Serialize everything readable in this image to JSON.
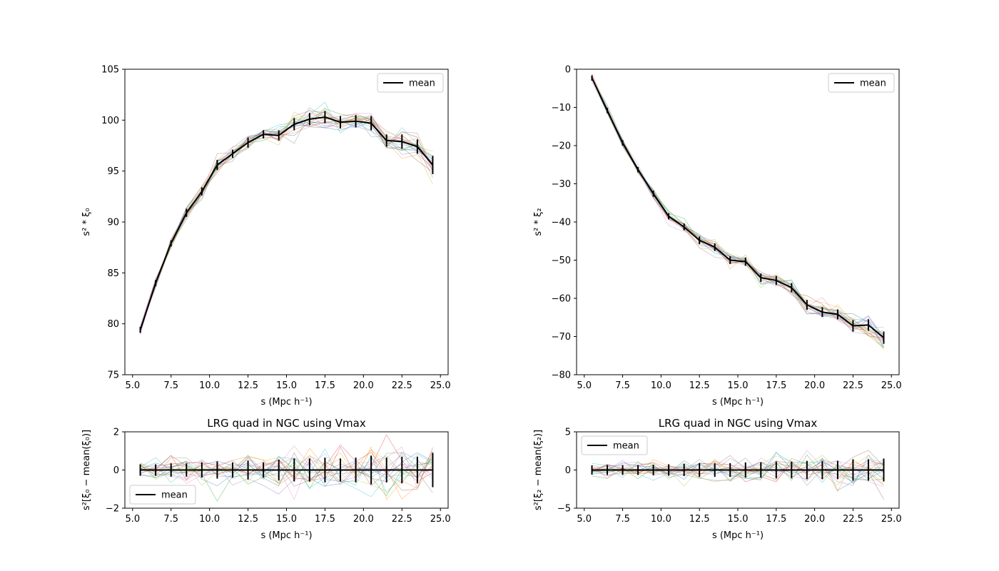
{
  "chart_data": [
    {
      "id": "xi0",
      "type": "line",
      "title": "",
      "xlabel": "s (Mpc h⁻¹)",
      "ylabel": "s² * ξ₀",
      "xlim": [
        4.5,
        25.5
      ],
      "ylim": [
        75,
        105
      ],
      "xticks": [
        5.0,
        7.5,
        10.0,
        12.5,
        15.0,
        17.5,
        20.0,
        22.5,
        25.0
      ],
      "xtick_labels": [
        "5.0",
        "7.5",
        "10.0",
        "12.5",
        "15.0",
        "17.5",
        "20.0",
        "22.5",
        "25.0"
      ],
      "yticks": [
        75,
        80,
        85,
        90,
        95,
        100,
        105
      ],
      "ytick_labels": [
        "75",
        "80",
        "85",
        "90",
        "95",
        "100",
        "105"
      ],
      "legend": {
        "position": "top-right",
        "entries": [
          "mean"
        ]
      },
      "grid": false,
      "x": [
        5.5,
        6.5,
        7.5,
        8.5,
        9.5,
        10.5,
        11.5,
        12.5,
        13.5,
        14.5,
        15.5,
        16.5,
        17.5,
        18.5,
        19.5,
        20.5,
        21.5,
        22.5,
        23.5,
        24.5
      ],
      "series": [
        {
          "name": "mean",
          "values": [
            79.4,
            84.0,
            87.9,
            90.9,
            93.0,
            95.6,
            96.7,
            97.8,
            98.6,
            98.5,
            99.6,
            100.1,
            100.3,
            99.8,
            99.9,
            99.7,
            98.0,
            97.9,
            97.4,
            95.6
          ],
          "errors": [
            0.3,
            0.3,
            0.3,
            0.4,
            0.4,
            0.5,
            0.4,
            0.5,
            0.4,
            0.5,
            0.6,
            0.6,
            0.6,
            0.6,
            0.6,
            0.7,
            0.6,
            0.7,
            0.7,
            0.9
          ]
        }
      ],
      "realization_spread": 0.6,
      "realization_count": 20
    },
    {
      "id": "xi2",
      "type": "line",
      "title": "",
      "xlabel": "s (Mpc h⁻¹)",
      "ylabel": "s² * ξ₂",
      "xlim": [
        4.5,
        25.5
      ],
      "ylim": [
        -80,
        0
      ],
      "xticks": [
        5.0,
        7.5,
        10.0,
        12.5,
        15.0,
        17.5,
        20.0,
        22.5,
        25.0
      ],
      "xtick_labels": [
        "5.0",
        "7.5",
        "10.0",
        "12.5",
        "15.0",
        "17.5",
        "20.0",
        "22.5",
        "25.0"
      ],
      "yticks": [
        -80,
        -70,
        -60,
        -50,
        -40,
        -30,
        -20,
        -10,
        0
      ],
      "ytick_labels": [
        "−80",
        "−70",
        "−60",
        "−50",
        "−40",
        "−30",
        "−20",
        "−10",
        "0"
      ],
      "legend": {
        "position": "top-right",
        "entries": [
          "mean"
        ]
      },
      "grid": false,
      "x": [
        5.5,
        6.5,
        7.5,
        8.5,
        9.5,
        10.5,
        11.5,
        12.5,
        13.5,
        14.5,
        15.5,
        16.5,
        17.5,
        18.5,
        19.5,
        20.5,
        21.5,
        22.5,
        23.5,
        24.5
      ],
      "series": [
        {
          "name": "mean",
          "values": [
            -2.3,
            -10.8,
            -19.3,
            -26.3,
            -32.6,
            -38.5,
            -41.3,
            -44.8,
            -46.6,
            -50.0,
            -50.4,
            -54.6,
            -55.3,
            -57.2,
            -61.7,
            -63.6,
            -64.2,
            -67.2,
            -67.0,
            -70.3
          ],
          "errors": [
            0.7,
            0.7,
            0.7,
            0.7,
            0.8,
            0.8,
            0.9,
            1.0,
            1.0,
            1.0,
            1.1,
            1.1,
            1.2,
            1.2,
            1.3,
            1.3,
            1.3,
            1.5,
            1.5,
            1.6
          ]
        }
      ],
      "realization_spread": 1.5,
      "realization_count": 20
    },
    {
      "id": "dxi0",
      "type": "line",
      "title": "LRG quad in NGC using Vmax",
      "xlabel": "s (Mpc h⁻¹)",
      "ylabel": "s²[ξ₀ − mean(ξ₀)]",
      "xlim": [
        4.5,
        25.5
      ],
      "ylim": [
        -2,
        2
      ],
      "xticks": [
        5.0,
        7.5,
        10.0,
        12.5,
        15.0,
        17.5,
        20.0,
        22.5,
        25.0
      ],
      "xtick_labels": [
        "5.0",
        "7.5",
        "10.0",
        "12.5",
        "15.0",
        "17.5",
        "20.0",
        "22.5",
        "25.0"
      ],
      "yticks": [
        -2,
        0,
        2
      ],
      "ytick_labels": [
        "−2",
        "0",
        "2"
      ],
      "legend": {
        "position": "bottom-left",
        "entries": [
          "mean"
        ]
      },
      "grid": false,
      "x": [
        5.5,
        6.5,
        7.5,
        8.5,
        9.5,
        10.5,
        11.5,
        12.5,
        13.5,
        14.5,
        15.5,
        16.5,
        17.5,
        18.5,
        19.5,
        20.5,
        21.5,
        22.5,
        23.5,
        24.5
      ],
      "series": [
        {
          "name": "mean",
          "values": [
            0,
            0,
            0,
            0,
            0,
            0,
            0,
            0,
            0,
            0,
            0,
            0,
            0,
            0,
            0,
            0,
            0,
            0,
            0,
            0
          ],
          "errors": [
            0.3,
            0.3,
            0.35,
            0.35,
            0.4,
            0.45,
            0.4,
            0.5,
            0.4,
            0.55,
            0.6,
            0.6,
            0.65,
            0.6,
            0.65,
            0.75,
            0.65,
            0.7,
            0.7,
            0.9
          ]
        }
      ],
      "realization_spread": 0.6,
      "realization_count": 20
    },
    {
      "id": "dxi2",
      "type": "line",
      "title": "LRG quad in NGC using Vmax",
      "xlabel": "s (Mpc h⁻¹)",
      "ylabel": "s²[ξ₂ − mean(ξ₂)]",
      "xlim": [
        4.5,
        25.5
      ],
      "ylim": [
        -5,
        5
      ],
      "xticks": [
        5.0,
        7.5,
        10.0,
        12.5,
        15.0,
        17.5,
        20.0,
        22.5,
        25.0
      ],
      "xtick_labels": [
        "5.0",
        "7.5",
        "10.0",
        "12.5",
        "15.0",
        "17.5",
        "20.0",
        "22.5",
        "25.0"
      ],
      "yticks": [
        -5,
        0,
        5
      ],
      "ytick_labels": [
        "−5",
        "0",
        "5"
      ],
      "legend": {
        "position": "top-left",
        "entries": [
          "mean"
        ]
      },
      "grid": false,
      "x": [
        5.5,
        6.5,
        7.5,
        8.5,
        9.5,
        10.5,
        11.5,
        12.5,
        13.5,
        14.5,
        15.5,
        16.5,
        17.5,
        18.5,
        19.5,
        20.5,
        21.5,
        22.5,
        23.5,
        24.5
      ],
      "series": [
        {
          "name": "mean",
          "values": [
            0,
            0,
            0,
            0,
            0,
            0,
            0,
            0,
            0,
            0,
            0,
            0,
            0,
            0,
            0,
            0,
            0,
            0,
            0,
            0
          ],
          "errors": [
            0.6,
            0.65,
            0.65,
            0.65,
            0.7,
            0.75,
            0.8,
            0.9,
            0.9,
            0.9,
            1.0,
            1.0,
            1.1,
            1.1,
            1.2,
            1.2,
            1.2,
            1.4,
            1.4,
            1.5
          ]
        }
      ],
      "realization_spread": 1.4,
      "realization_count": 20
    }
  ],
  "colors": {
    "mean": "#000000",
    "realizations": [
      "#1f77b4",
      "#ff7f0e",
      "#2ca02c",
      "#d62728",
      "#9467bd",
      "#8c564b",
      "#e377c2",
      "#7f7f7f",
      "#bcbd22",
      "#17becf"
    ]
  }
}
